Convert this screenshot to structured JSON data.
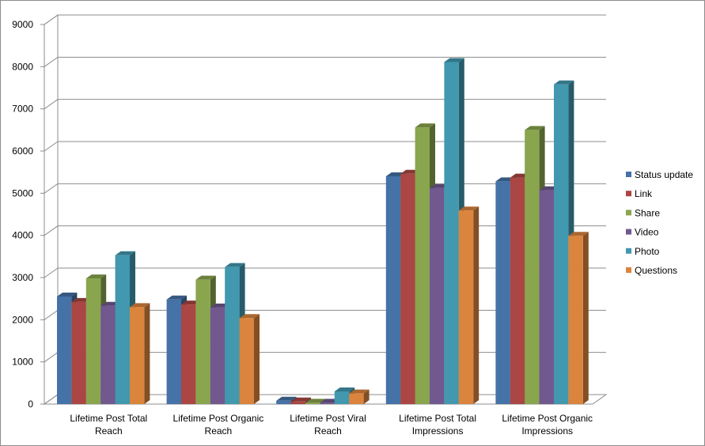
{
  "chart_data": {
    "type": "bar",
    "title": "",
    "xlabel": "",
    "ylabel": "",
    "ylim": [
      0,
      9000
    ],
    "yticks": [
      0,
      1000,
      2000,
      3000,
      4000,
      5000,
      6000,
      7000,
      8000,
      9000
    ],
    "ytick_labels": [
      "0",
      "1000",
      "2000",
      "3000",
      "4000",
      "5000",
      "6000",
      "7000",
      "8000",
      "9000"
    ],
    "grid": true,
    "legend_position": "right",
    "categories": [
      [
        "Lifetime Post Total",
        "Reach"
      ],
      [
        "Lifetime Post Organic",
        "Reach"
      ],
      [
        "Lifetime Post Viral",
        "Reach"
      ],
      [
        "Lifetime Post Total",
        "Impressions"
      ],
      [
        "Lifetime Post Organic",
        "Impressions"
      ]
    ],
    "series": [
      {
        "name": "Status update",
        "color": "#4572a7",
        "values": [
          2550,
          2480,
          80,
          5400,
          5280
        ]
      },
      {
        "name": "Link",
        "color": "#aa4643",
        "values": [
          2420,
          2360,
          60,
          5460,
          5370
        ]
      },
      {
        "name": "Share",
        "color": "#89a54e",
        "values": [
          2980,
          2950,
          30,
          6560,
          6500
        ]
      },
      {
        "name": "Video",
        "color": "#71588f",
        "values": [
          2330,
          2290,
          30,
          5120,
          5070
        ]
      },
      {
        "name": "Photo",
        "color": "#4198af",
        "values": [
          3530,
          3250,
          300,
          8110,
          7580
        ]
      },
      {
        "name": "Questions",
        "color": "#db843d",
        "values": [
          2300,
          2040,
          250,
          4590,
          3990
        ]
      }
    ]
  }
}
